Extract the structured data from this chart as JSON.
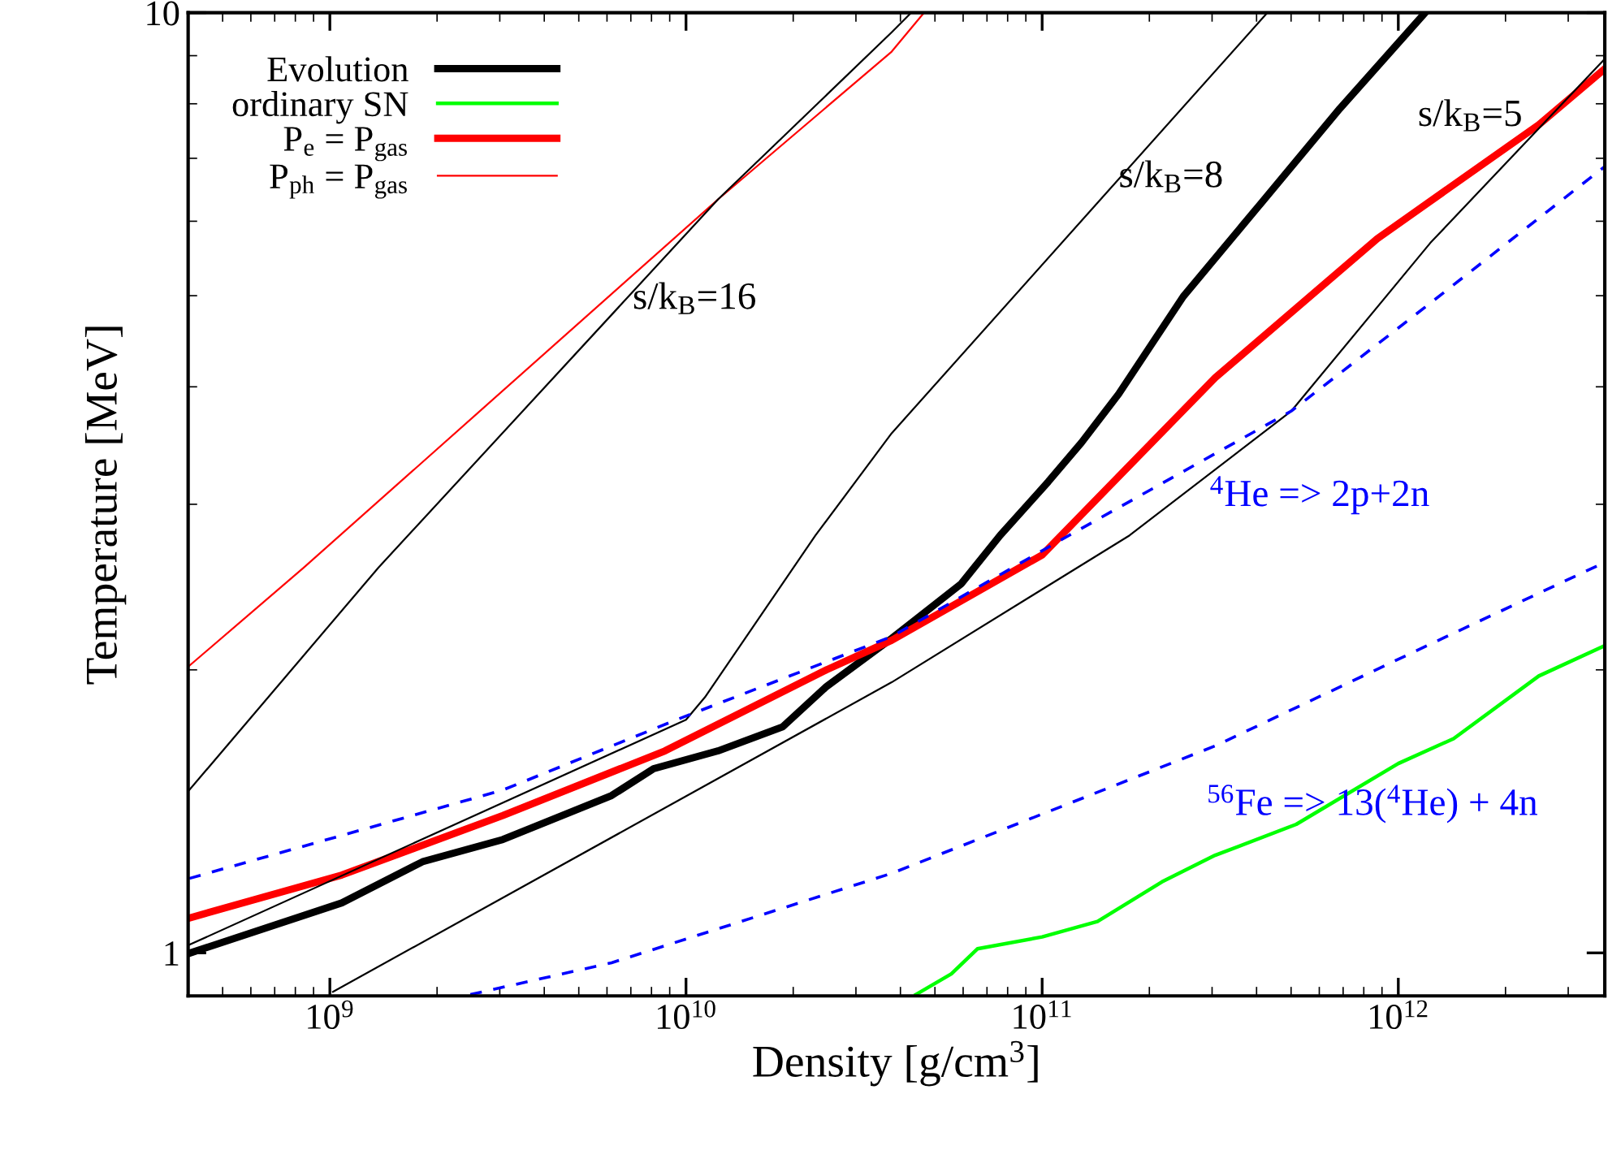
{
  "chart_data": {
    "type": "line",
    "xlabel": "Density [g/cm$^{3}$]",
    "ylabel": "Temperature [MeV]",
    "log": "xy",
    "xlim": [
      400000000.0,
      3800000000000.0
    ],
    "ylim": [
      0.9,
      10
    ],
    "xticks": [
      {
        "value": 1000000000.0,
        "label": "10$^{9}$"
      },
      {
        "value": 10000000000.0,
        "label": "10$^{10}$"
      },
      {
        "value": 100000000000.0,
        "label": "10$^{11}$"
      },
      {
        "value": 1000000000000.0,
        "label": "10$^{12}$"
      }
    ],
    "yticks": [
      1,
      10
    ],
    "grid": false,
    "legend": "top left",
    "series": [
      {
        "name": "Evolution",
        "color": "#000000",
        "line_style": "solid",
        "x": [
          406000000.0,
          1080000000.0,
          1820000000.0,
          3060000000.0,
          6180000000.0,
          8110000000.0,
          12300000000.0,
          18700000000.0,
          24800000000.0,
          37800000000.0,
          59300000000.0,
          76200000000.0,
          104000000000.0,
          129000000000.0,
          164000000000.0,
          249000000000.0,
          406000000000.0,
          686000000000.0,
          1190000000000.0
        ],
        "values": [
          1.0,
          1.13,
          1.25,
          1.32,
          1.47,
          1.57,
          1.64,
          1.74,
          1.92,
          2.16,
          2.47,
          2.78,
          3.17,
          3.49,
          3.93,
          4.99,
          6.23,
          7.91,
          10
        ]
      },
      {
        "name": "ordinary SN",
        "color": "#00ff00",
        "line_style": "solid",
        "x": [
          44200000000.0,
          55600000000.0,
          65800000000.0,
          100000000000.0,
          143000000000.0,
          217000000000.0,
          306000000000.0,
          517000000000.0,
          1000000000000.0,
          1430000000000.0,
          2480000000000.0,
          3780000000000.0
        ],
        "values": [
          0.903,
          0.95,
          1.01,
          1.04,
          1.08,
          1.19,
          1.27,
          1.37,
          1.59,
          1.69,
          1.97,
          2.12
        ]
      },
      {
        "name": "P$_{e}$ = P$_{gas}$",
        "color": "#ff0000",
        "line_style": "solid",
        "x": [
          406000000.0,
          1080000000.0,
          3060000000.0,
          8730000000.0,
          24800000000.0,
          37800000000.0,
          100000000000.0,
          306000000000.0,
          873000000000.0,
          2480000000000.0,
          3780000000000.0
        ],
        "values": [
          1.09,
          1.21,
          1.4,
          1.64,
          2.0,
          2.15,
          2.65,
          4.09,
          5.75,
          7.6,
          8.7
        ]
      },
      {
        "name": "P$_{ph}$ = P$_{gas}$",
        "color": "#ff0000",
        "line_style": "solid",
        "x": [
          403000000.0,
          846000000.0,
          12300000000.0,
          37800000000.0,
          46600000000.0
        ],
        "values": [
          2.02,
          2.57,
          6.33,
          9.09,
          10
        ]
      },
      {
        "color": "#000000",
        "line_style": "solid",
        "x": [
          403000000.0,
          1370000000.0,
          12300000000.0,
          37800000000.0,
          42900000000.0
        ],
        "values": [
          1.49,
          2.57,
          6.33,
          9.53,
          10
        ]
      },
      {
        "color": "#000000",
        "line_style": "solid",
        "x": [
          403000000.0,
          10000000000.0,
          11300000000.0,
          23100000000.0,
          37800000000.0,
          429000000000.0
        ],
        "values": [
          1.02,
          1.77,
          1.87,
          2.78,
          3.57,
          10
        ]
      },
      {
        "color": "#000000",
        "line_style": "solid",
        "x": [
          1020000000.0,
          37800000000.0,
          176000000000.0,
          501000000000.0,
          1230000000000.0,
          3780000000000.0
        ],
        "values": [
          0.909,
          1.94,
          2.78,
          3.77,
          5.69,
          8.91
        ]
      },
      {
        "color": "#0000ff",
        "line_style": "dashed",
        "x": [
          403000000.0,
          3060000000.0,
          9410000000.0,
          37800000000.0,
          119000000000.0,
          501000000000.0,
          1230000000000.0,
          3780000000000.0
        ],
        "values": [
          1.2,
          1.49,
          1.77,
          2.17,
          2.78,
          3.77,
          4.91,
          6.85
        ]
      },
      {
        "color": "#0000ff",
        "line_style": "dashed",
        "x": [
          2480000000.0,
          6180000000.0,
          37800000000.0,
          306000000000.0,
          1230000000000.0,
          3780000000000.0
        ],
        "values": [
          0.903,
          0.976,
          1.215,
          1.66,
          2.13,
          2.6
        ]
      }
    ],
    "annotations": [
      {
        "text": "s/k$_{B}$=16",
        "x": 7080000000.0,
        "y": 4.95
      },
      {
        "text": "s/k$_{B}$=8",
        "x": 164000000000.0,
        "y": 6.67
      },
      "s/k$_{B}$=5",
      "$^{4}$He => 2p+2n",
      "$^{56}$Fe => 13($^{4}$He) + 4n"
    ]
  }
}
